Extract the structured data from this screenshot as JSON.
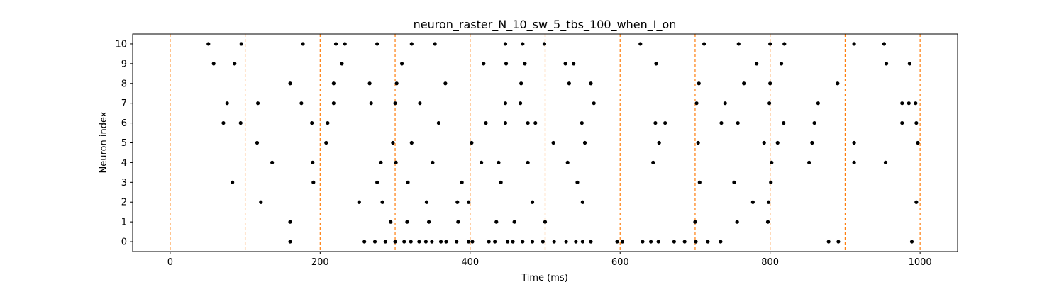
{
  "chart_data": {
    "type": "scatter",
    "title": "neuron_raster_N_10_sw_5_tbs_100_when_I_on",
    "xlabel": "Time (ms)",
    "ylabel": "Neuron index",
    "xlim": [
      -50,
      1050
    ],
    "ylim": [
      -0.5,
      10.5
    ],
    "xticks": [
      0,
      200,
      400,
      600,
      800,
      1000
    ],
    "yticks": [
      0,
      1,
      2,
      3,
      4,
      5,
      6,
      7,
      8,
      9,
      10
    ],
    "grid": false,
    "marker_color": "#000000",
    "vlines": {
      "x": [
        0,
        100,
        200,
        300,
        400,
        500,
        600,
        700,
        800,
        900,
        1000
      ],
      "color": "#ff7f0e",
      "style": "dashed"
    },
    "spikes": [
      {
        "neuron": 10,
        "times": [
          51,
          95,
          177,
          221,
          233,
          276,
          322,
          353,
          447,
          470,
          499,
          627,
          712,
          758,
          800,
          819,
          912,
          952
        ]
      },
      {
        "neuron": 9,
        "times": [
          58,
          86,
          229,
          309,
          418,
          448,
          473,
          527,
          538,
          648,
          782,
          815,
          955,
          986
        ]
      },
      {
        "neuron": 8,
        "times": [
          160,
          218,
          266,
          302,
          367,
          468,
          532,
          561,
          705,
          765,
          800,
          890
        ]
      },
      {
        "neuron": 7,
        "times": [
          76,
          117,
          175,
          218,
          268,
          300,
          333,
          447,
          467,
          565,
          702,
          740,
          799,
          864,
          976,
          985,
          994
        ]
      },
      {
        "neuron": 6,
        "times": [
          71,
          94,
          189,
          210,
          358,
          421,
          447,
          477,
          487,
          549,
          647,
          660,
          735,
          757,
          818,
          859,
          976,
          995
        ]
      },
      {
        "neuron": 5,
        "times": [
          116,
          208,
          297,
          322,
          402,
          511,
          553,
          652,
          704,
          792,
          810,
          856,
          912,
          997
        ]
      },
      {
        "neuron": 4,
        "times": [
          136,
          190,
          281,
          301,
          350,
          415,
          438,
          477,
          530,
          644,
          802,
          852,
          912,
          954
        ]
      },
      {
        "neuron": 3,
        "times": [
          83,
          191,
          276,
          317,
          389,
          441,
          543,
          706,
          752,
          801
        ]
      },
      {
        "neuron": 2,
        "times": [
          121,
          252,
          283,
          342,
          383,
          398,
          483,
          550,
          777,
          798,
          995
        ]
      },
      {
        "neuron": 1,
        "times": [
          160,
          294,
          316,
          345,
          384,
          435,
          459,
          500,
          700,
          756,
          797
        ]
      },
      {
        "neuron": 0,
        "times": [
          160,
          259,
          273,
          287,
          300,
          312,
          321,
          332,
          341,
          349,
          361,
          368,
          382,
          398,
          403,
          425,
          433,
          450,
          457,
          470,
          483,
          497,
          512,
          528,
          541,
          550,
          561,
          596,
          603,
          630,
          641,
          651,
          672,
          686,
          701,
          717,
          734,
          878,
          891,
          989
        ]
      }
    ]
  }
}
